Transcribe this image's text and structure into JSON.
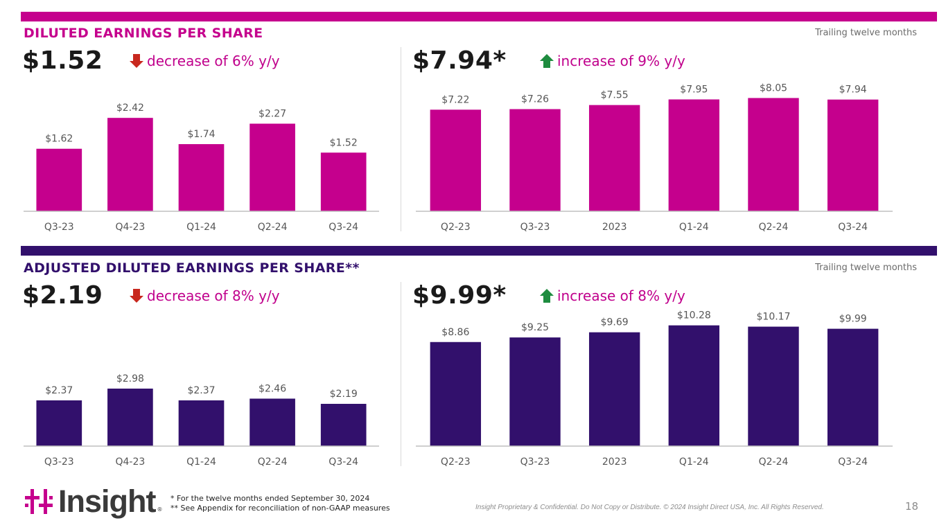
{
  "colors": {
    "magenta": "#c5008d",
    "purple": "#32106c",
    "up": "#1e8c3f",
    "down": "#c8281e"
  },
  "sections": {
    "diluted": {
      "title": "DILUTED EARNINGS PER SHARE",
      "ttm_label": "Trailing twelve months",
      "quarter_value": "$1.52",
      "quarter_change": "decrease of 6% y/y",
      "quarter_arrow": "down-arrow-icon",
      "ttm_value": "$7.94*",
      "ttm_change": "increase of 9% y/y",
      "ttm_arrow": "up-arrow-icon"
    },
    "adjusted": {
      "title": "ADJUSTED DILUTED EARNINGS PER SHARE**",
      "ttm_label": "Trailing twelve months",
      "quarter_value": "$2.19",
      "quarter_change": "decrease of 8% y/y",
      "quarter_arrow": "down-arrow-icon",
      "ttm_value": "$9.99*",
      "ttm_change": "increase of 8% y/y",
      "ttm_arrow": "up-arrow-icon"
    }
  },
  "chart_data": [
    {
      "id": "diluted-quarterly",
      "type": "bar",
      "categories": [
        "Q3-23",
        "Q4-23",
        "Q1-24",
        "Q2-24",
        "Q3-24"
      ],
      "values": [
        1.62,
        2.42,
        1.74,
        2.27,
        1.52
      ],
      "labels": [
        "$1.62",
        "$2.42",
        "$1.74",
        "$2.27",
        "$1.52"
      ],
      "ylim": [
        0,
        3.5
      ],
      "color": "#c5008d"
    },
    {
      "id": "diluted-ttm",
      "type": "bar",
      "categories": [
        "Q2-23",
        "Q3-23",
        "2023",
        "Q1-24",
        "Q2-24",
        "Q3-24"
      ],
      "values": [
        7.22,
        7.26,
        7.55,
        7.95,
        8.05,
        7.94
      ],
      "labels": [
        "$7.22",
        "$7.26",
        "$7.55",
        "$7.95",
        "$8.05",
        "$7.94"
      ],
      "ylim": [
        0,
        9.6
      ],
      "color": "#c5008d"
    },
    {
      "id": "adjusted-quarterly",
      "type": "bar",
      "categories": [
        "Q3-23",
        "Q4-23",
        "Q1-24",
        "Q2-24",
        "Q3-24"
      ],
      "values": [
        2.37,
        2.98,
        2.37,
        2.46,
        2.19
      ],
      "labels": [
        "$2.37",
        "$2.98",
        "$2.37",
        "$2.46",
        "$2.19"
      ],
      "ylim": [
        0,
        7.0
      ],
      "color": "#32106c"
    },
    {
      "id": "adjusted-ttm",
      "type": "bar",
      "categories": [
        "Q2-23",
        "Q3-23",
        "2023",
        "Q1-24",
        "Q2-24",
        "Q3-24"
      ],
      "values": [
        8.86,
        9.25,
        9.69,
        10.28,
        10.17,
        9.99
      ],
      "labels": [
        "$8.86",
        "$9.25",
        "$9.69",
        "$10.28",
        "$10.17",
        "$9.99"
      ],
      "ylim": [
        0,
        11.5
      ],
      "color": "#32106c"
    }
  ],
  "footer": {
    "logo_text": "Insight",
    "logo_reg": "®",
    "footnote1": "* For the twelve months ended September 30, 2024",
    "footnote2": "** See Appendix for reconciliation of non-GAAP measures",
    "confidential": "Insight Proprietary & Confidential. Do Not Copy or Distribute. © 2024 Insight Direct USA, Inc. All Rights Reserved.",
    "page_number": "18"
  }
}
